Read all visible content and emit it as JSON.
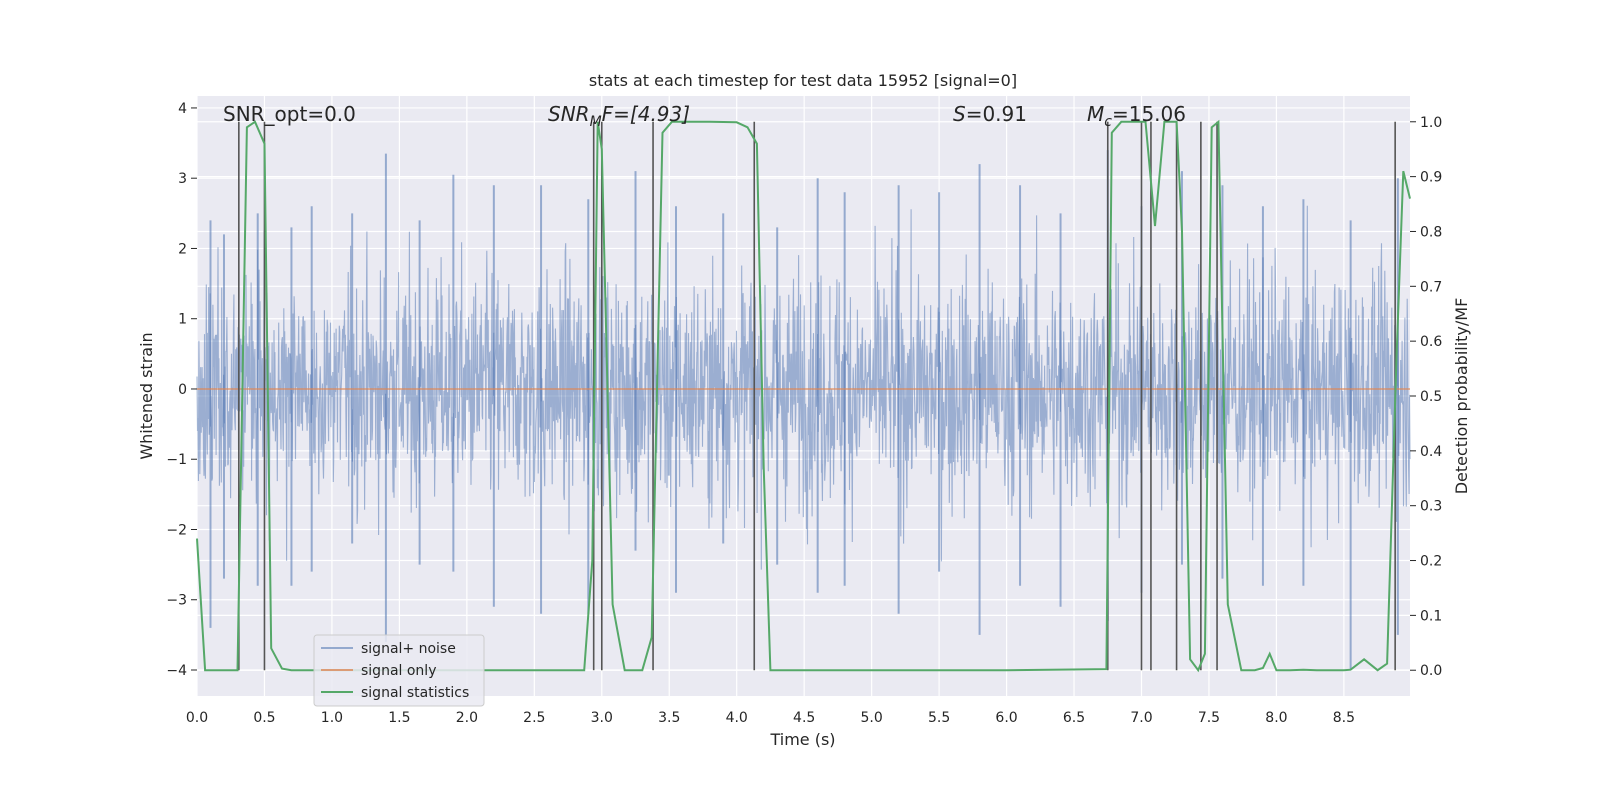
{
  "chart_data": {
    "type": "line",
    "title": "stats at each timestep for test data 15952 [signal=0]",
    "xlabel": "Time (s)",
    "ylabel_left": "Whitened strain",
    "ylabel_right": "Detection probability/MF",
    "xlim": [
      0.0,
      8.99
    ],
    "ylim_left": [
      -4.37,
      4.17
    ],
    "ylim_right": [
      -0.047,
      1.047
    ],
    "x_ticks": [
      "0.0",
      "0.5",
      "1.0",
      "1.5",
      "2.0",
      "2.5",
      "3.0",
      "3.5",
      "4.0",
      "4.5",
      "5.0",
      "5.5",
      "6.0",
      "6.5",
      "7.0",
      "7.5",
      "8.0",
      "8.5"
    ],
    "x_tick_values": [
      0.0,
      0.5,
      1.0,
      1.5,
      2.0,
      2.5,
      3.0,
      3.5,
      4.0,
      4.5,
      5.0,
      5.5,
      6.0,
      6.5,
      7.0,
      7.5,
      8.0,
      8.5
    ],
    "y_left_ticks": [
      "−4",
      "−3",
      "−2",
      "−1",
      "0",
      "1",
      "2",
      "3",
      "4"
    ],
    "y_left_tick_values": [
      -4,
      -3,
      -2,
      -1,
      0,
      1,
      2,
      3,
      4
    ],
    "y_right_ticks": [
      "0.0",
      "0.1",
      "0.2",
      "0.3",
      "0.4",
      "0.5",
      "0.6",
      "0.7",
      "0.8",
      "0.9",
      "1.0"
    ],
    "y_right_tick_values": [
      0.0,
      0.1,
      0.2,
      0.3,
      0.4,
      0.5,
      0.6,
      0.7,
      0.8,
      0.9,
      1.0
    ],
    "annotations": {
      "snr_opt": "SNR_opt=0.0",
      "snr_mf_main": "SNR",
      "snr_mf_sub": "M",
      "snr_mf_rest": "F=[4.93]",
      "s_symbol": "S",
      "s_value": "=0.91",
      "mc_symbol": "M",
      "mc_sub": "c",
      "mc_value": "=15.06"
    },
    "legend": {
      "placement": "lower-left",
      "entries": [
        "signal+ noise",
        "signal only",
        "signal statistics"
      ]
    },
    "colors": {
      "noise": "#4c72b0",
      "signal": "#dd8452",
      "stats": "#55a868",
      "vlines": "#555555",
      "background": "#eaeaf2",
      "grid": "#ffffff"
    },
    "series": [
      {
        "name": "signal+ noise",
        "axis": "left",
        "note": "whitened strain noise, std ~0.85, envelope peaks listed",
        "peaks_x": [
          0.1,
          0.2,
          0.45,
          0.7,
          0.85,
          1.15,
          1.4,
          1.65,
          1.9,
          2.2,
          2.55,
          2.9,
          3.25,
          3.55,
          3.9,
          4.3,
          4.6,
          4.8,
          5.2,
          5.5,
          5.8,
          6.1,
          6.4,
          6.75,
          7.0,
          7.3,
          7.6,
          7.9,
          8.2,
          8.55,
          8.9
        ],
        "peaks_hi": [
          2.4,
          2.2,
          2.5,
          2.3,
          2.6,
          2.5,
          3.35,
          2.4,
          3.05,
          2.9,
          2.9,
          2.7,
          3.1,
          2.6,
          2.5,
          2.3,
          3.0,
          2.8,
          2.9,
          2.8,
          3.2,
          2.9,
          2.5,
          3.4,
          2.6,
          3.1,
          2.9,
          2.6,
          2.7,
          2.4,
          3.0
        ],
        "peaks_lo": [
          -3.4,
          -2.7,
          -2.8,
          -2.8,
          -2.6,
          -2.2,
          -3.6,
          -2.5,
          -2.6,
          -3.1,
          -3.2,
          -3.2,
          -2.3,
          -2.9,
          -2.2,
          -2.5,
          -2.9,
          -2.8,
          -3.2,
          -2.6,
          -3.5,
          -2.8,
          -3.1,
          -3.3,
          -2.9,
          -2.5,
          -2.7,
          -2.8,
          -2.8,
          -4.0,
          -3.5
        ]
      },
      {
        "name": "signal only",
        "axis": "left",
        "x": [
          0.0,
          8.99
        ],
        "y": [
          0.0,
          0.0
        ]
      },
      {
        "name": "signal statistics",
        "axis": "right",
        "x": [
          0.0,
          0.06,
          0.2,
          0.3,
          0.37,
          0.43,
          0.5,
          0.55,
          0.63,
          0.7,
          0.9,
          1.5,
          2.0,
          2.5,
          2.87,
          2.93,
          2.97,
          3.0,
          3.08,
          3.17,
          3.3,
          3.37,
          3.45,
          3.52,
          3.6,
          3.8,
          4.0,
          4.08,
          4.15,
          4.2,
          4.25,
          4.4,
          5.0,
          6.0,
          6.74,
          6.78,
          6.85,
          6.97,
          7.03,
          7.1,
          7.17,
          7.26,
          7.3,
          7.36,
          7.42,
          7.47,
          7.52,
          7.57,
          7.64,
          7.74,
          7.84,
          7.9,
          7.95,
          8.0,
          8.1,
          8.2,
          8.3,
          8.5,
          8.55,
          8.65,
          8.75,
          8.82,
          8.89,
          8.94,
          8.99
        ],
        "y": [
          0.24,
          0.0,
          0.0,
          0.0,
          0.99,
          1.0,
          0.96,
          0.04,
          0.003,
          0.0,
          0.0,
          0.0,
          0.0,
          0.0,
          0.0,
          0.2,
          1.0,
          0.95,
          0.12,
          0.0,
          0.0,
          0.06,
          0.98,
          1.0,
          1.0,
          1.0,
          0.999,
          0.99,
          0.96,
          0.37,
          0.0,
          0.0,
          0.0,
          0.0,
          0.002,
          0.98,
          1.0,
          1.0,
          1.0,
          0.81,
          1.0,
          1.0,
          0.8,
          0.02,
          0.0,
          0.03,
          0.99,
          1.0,
          0.12,
          0.0,
          0.0,
          0.004,
          0.03,
          0.0,
          0.0,
          0.001,
          0.0,
          0.0,
          0.001,
          0.02,
          0.0,
          0.012,
          0.57,
          0.91,
          0.86
        ]
      }
    ],
    "vertical_lines_x": [
      0.31,
      0.5,
      2.94,
      3.0,
      3.38,
      4.13,
      6.75,
      7.0,
      7.07,
      7.26,
      7.44,
      7.56,
      8.88
    ]
  }
}
